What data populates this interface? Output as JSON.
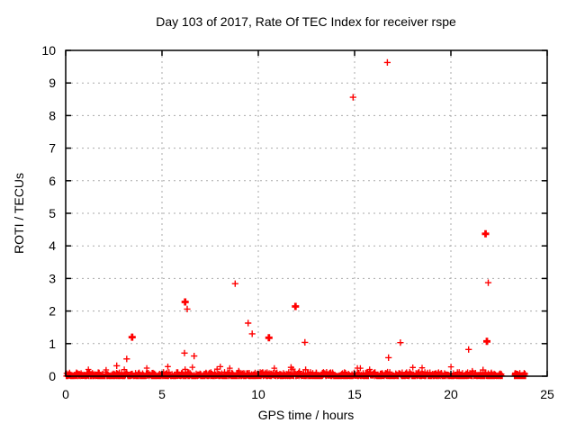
{
  "chart_data": {
    "type": "scatter",
    "title": "Day 103 of 2017, Rate Of TEC Index for receiver rspe",
    "xlabel": "GPS time / hours",
    "ylabel": "ROTI / TECUs",
    "xlim": [
      0,
      25
    ],
    "ylim": [
      0,
      10
    ],
    "xticks": [
      0,
      5,
      10,
      15,
      20,
      25
    ],
    "yticks": [
      0,
      1,
      2,
      3,
      4,
      5,
      6,
      7,
      8,
      9,
      10
    ],
    "grid": true,
    "legend_position": "none",
    "marker": {
      "shape": "plus",
      "semantic": "plus-marker-icon"
    },
    "colors": {
      "marker": "#ff0000",
      "grid": "#aaaaaa",
      "border": "#000000",
      "text": "#000000",
      "background": "#ffffff"
    },
    "outliers": [
      {
        "x": 2.65,
        "y": 0.32,
        "bold": false
      },
      {
        "x": 3.17,
        "y": 0.53,
        "bold": false
      },
      {
        "x": 3.45,
        "y": 1.2,
        "bold": true
      },
      {
        "x": 6.17,
        "y": 0.71,
        "bold": false
      },
      {
        "x": 6.2,
        "y": 2.28,
        "bold": true
      },
      {
        "x": 6.31,
        "y": 2.06,
        "bold": false
      },
      {
        "x": 6.67,
        "y": 0.62,
        "bold": false
      },
      {
        "x": 8.8,
        "y": 2.84,
        "bold": false
      },
      {
        "x": 9.47,
        "y": 1.63,
        "bold": false
      },
      {
        "x": 9.68,
        "y": 1.3,
        "bold": false
      },
      {
        "x": 10.55,
        "y": 1.18,
        "bold": true
      },
      {
        "x": 11.7,
        "y": 0.27,
        "bold": false
      },
      {
        "x": 11.93,
        "y": 2.14,
        "bold": true
      },
      {
        "x": 12.42,
        "y": 1.04,
        "bold": false
      },
      {
        "x": 12.46,
        "y": 0.2,
        "bold": false
      },
      {
        "x": 14.92,
        "y": 8.56,
        "bold": false
      },
      {
        "x": 16.7,
        "y": 9.63,
        "bold": false
      },
      {
        "x": 16.76,
        "y": 0.57,
        "bold": false
      },
      {
        "x": 17.38,
        "y": 1.03,
        "bold": false
      },
      {
        "x": 20.92,
        "y": 0.82,
        "bold": false
      },
      {
        "x": 21.67,
        "y": 0.19,
        "bold": false
      },
      {
        "x": 21.8,
        "y": 4.37,
        "bold": true
      },
      {
        "x": 21.87,
        "y": 1.07,
        "bold": true
      },
      {
        "x": 21.94,
        "y": 2.87,
        "bold": false
      }
    ],
    "band_segments": [
      {
        "x_start": 0.03,
        "x_end": 22.68,
        "y_min": 0,
        "y_max": 0.13,
        "step": 0.02,
        "spike_max": 0.3,
        "spike_prob": 0.02
      },
      {
        "x_start": 23.3,
        "x_end": 23.88,
        "y_min": 0,
        "y_max": 0.1,
        "step": 0.01,
        "spike_max": 0.1,
        "spike_prob": 0
      }
    ]
  }
}
